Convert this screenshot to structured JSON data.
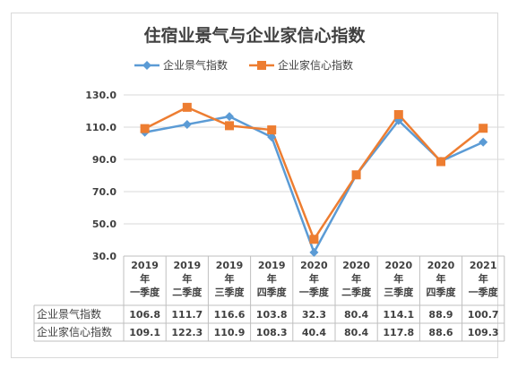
{
  "chart_data": {
    "type": "line",
    "title": "住宿业景气与企业家信心指数",
    "categories": [
      [
        "2019",
        "年",
        "一季度"
      ],
      [
        "2019",
        "年",
        "二季度"
      ],
      [
        "2019",
        "年",
        "三季度"
      ],
      [
        "2019",
        "年",
        "四季度"
      ],
      [
        "2020",
        "年",
        "一季度"
      ],
      [
        "2020",
        "年",
        "二季度"
      ],
      [
        "2020",
        "年",
        "三季度"
      ],
      [
        "2020",
        "年",
        "四季度"
      ],
      [
        "2021",
        "年",
        "一季度"
      ]
    ],
    "series": [
      {
        "name": "企业景气指数",
        "color": "#5b9bd5",
        "marker": "diamond",
        "values": [
          106.8,
          111.7,
          116.6,
          103.8,
          32.3,
          80.4,
          114.1,
          88.9,
          100.7
        ],
        "labels": [
          "106.8",
          "111.7",
          "116.6",
          "103.8",
          "32.3",
          "80.4",
          "114.1",
          "88.9",
          "100.7"
        ]
      },
      {
        "name": "企业家信心指数",
        "color": "#ed7d31",
        "marker": "square",
        "values": [
          109.1,
          122.3,
          110.9,
          108.3,
          40.4,
          80.4,
          117.8,
          88.6,
          109.3
        ],
        "labels": [
          "109.1",
          "122.3",
          "110.9",
          "108.3",
          "40.4",
          "80.4",
          "117.8",
          "88.6",
          "109.3"
        ]
      }
    ],
    "ylim": [
      30,
      130
    ],
    "yticks": [
      "30.0",
      "50.0",
      "70.0",
      "90.0",
      "110.0",
      "130.0"
    ],
    "legend_position": "top",
    "grid": true,
    "data_table": true
  }
}
